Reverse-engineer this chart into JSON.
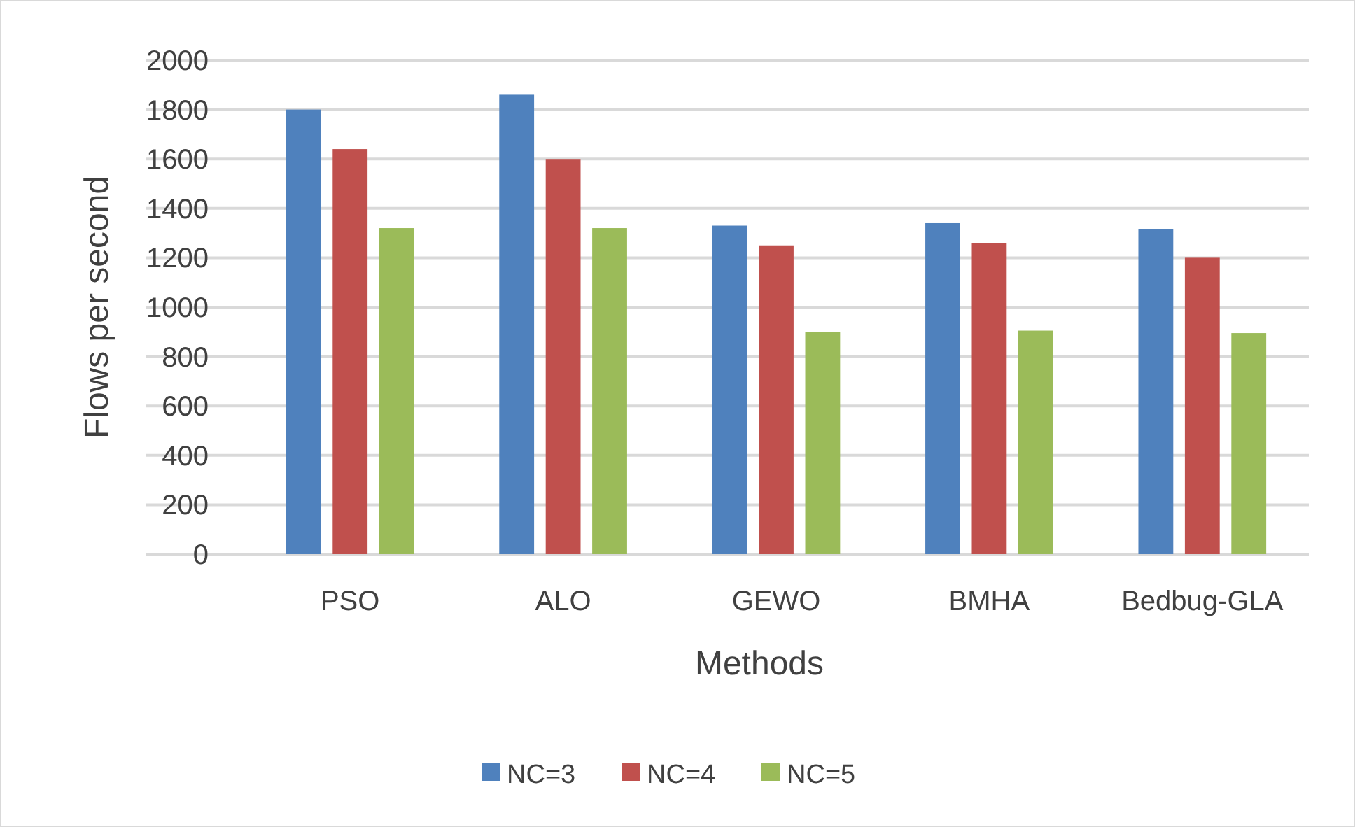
{
  "chart_data": {
    "type": "bar",
    "xlabel": "Methods",
    "ylabel": "Flows per second",
    "categories": [
      "PSO",
      "ALO",
      "GEWO",
      "BMHA",
      "Bedbug-GLA"
    ],
    "series": [
      {
        "name": "NC=3",
        "color": "#4f81bd",
        "values": [
          1800,
          1860,
          1330,
          1340,
          1315
        ]
      },
      {
        "name": "NC=4",
        "color": "#c0504d",
        "values": [
          1640,
          1600,
          1250,
          1260,
          1200
        ]
      },
      {
        "name": "NC=5",
        "color": "#9bbb59",
        "values": [
          1320,
          1320,
          900,
          905,
          895
        ]
      }
    ],
    "ylim": [
      0,
      2000
    ],
    "yticks": [
      0,
      200,
      400,
      600,
      800,
      1000,
      1200,
      1400,
      1600,
      1800,
      2000
    ],
    "grid": "y",
    "legend": "bottom"
  }
}
